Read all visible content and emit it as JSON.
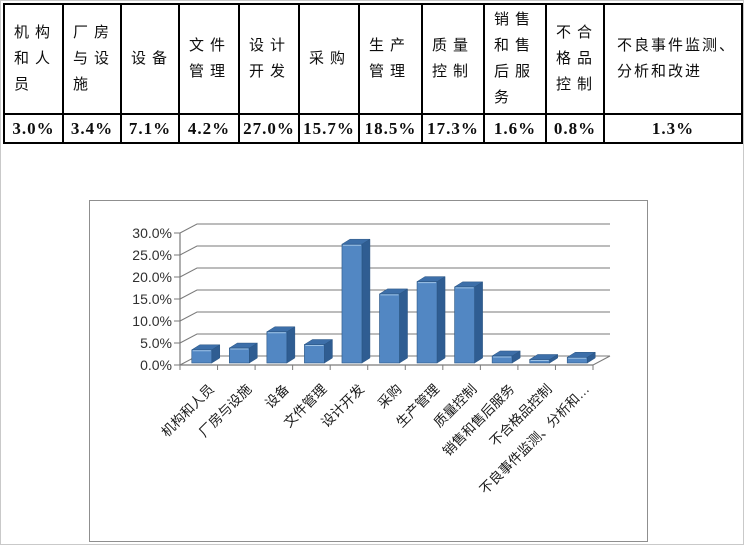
{
  "document": {
    "table": {
      "columns": [
        {
          "label": "机构和人员",
          "value": "3.0%"
        },
        {
          "label": "厂房与设施",
          "value": "3.4%"
        },
        {
          "label": "设备",
          "value": "7.1%"
        },
        {
          "label": "文件管理",
          "value": "4.2%"
        },
        {
          "label": "设计开发",
          "value": "27.0%"
        },
        {
          "label": "采购",
          "value": "15.7%"
        },
        {
          "label": "生产管理",
          "value": "18.5%"
        },
        {
          "label": "质量控制",
          "value": "17.3%"
        },
        {
          "label": "销售和售后服务",
          "value": "1.6%"
        },
        {
          "label": "不合格品控制",
          "value": "0.8%"
        },
        {
          "label": "不良事件监测、分析和改进",
          "value": "1.3%"
        }
      ]
    }
  },
  "chart_data": {
    "type": "bar",
    "style": "3d-column",
    "title": "",
    "xlabel": "",
    "ylabel": "",
    "categories": [
      "机构和人员",
      "厂房与设施",
      "设备",
      "文件管理",
      "设计开发",
      "采购",
      "生产管理",
      "质量控制",
      "销售和售后服务",
      "不合格品控制",
      "不良事件监测、分析和改进"
    ],
    "xtick_labels": [
      "机构和人员",
      "厂房与设施",
      "设备",
      "文件管理",
      "设计开发",
      "采购",
      "生产管理",
      "质量控制",
      "销售和售后服务",
      "不合格品控制",
      "不良事件监测、分析和…"
    ],
    "values": [
      3.0,
      3.4,
      7.1,
      4.2,
      27.0,
      15.7,
      18.5,
      17.3,
      1.6,
      0.8,
      1.3
    ],
    "unit": "%",
    "ylim": [
      0,
      30
    ],
    "ytick_step": 5,
    "ytick_labels": [
      "0.0%",
      "5.0%",
      "10.0%",
      "15.0%",
      "20.0%",
      "25.0%",
      "30.0%"
    ],
    "grid": true,
    "legend": "none",
    "colors": {
      "bar_front": "#5287c3",
      "bar_side": "#2f5d92",
      "bar_top": "#3d6fa9",
      "bar_edge": "#2a5583",
      "bar_highlight": "#9dc2e5",
      "gridline": "#7a7a7a",
      "axis": "#7a7a7a",
      "tick_text": "#303030"
    }
  }
}
